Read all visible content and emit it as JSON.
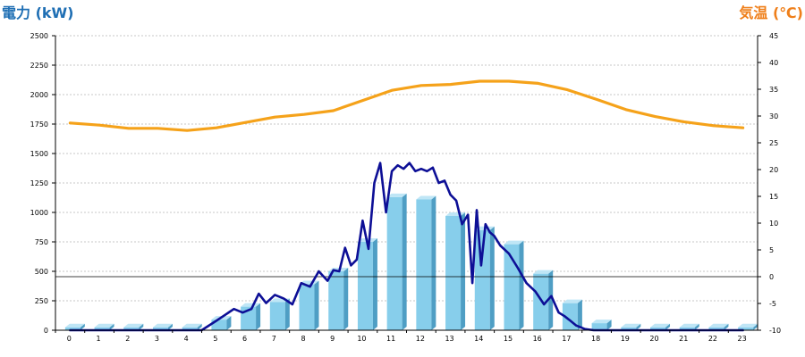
{
  "chart_data": {
    "type": "bar",
    "title_left": "電力 (kW)",
    "title_right": "気温 (℃)",
    "left_axis": {
      "min": 0,
      "max": 2500,
      "ticks": [
        0,
        250,
        500,
        750,
        1000,
        1250,
        1500,
        1750,
        2000,
        2250,
        2500
      ]
    },
    "right_axis": {
      "min": -10,
      "max": 45,
      "ticks": [
        -10,
        -5,
        0,
        5,
        10,
        15,
        20,
        25,
        30,
        35,
        40,
        45
      ]
    },
    "categories": [
      "0",
      "1",
      "2",
      "3",
      "4",
      "5",
      "6",
      "7",
      "8",
      "9",
      "10",
      "11",
      "12",
      "13",
      "14",
      "15",
      "16",
      "17",
      "18",
      "19",
      "20",
      "21",
      "22",
      "23"
    ],
    "grid": true,
    "bars": [
      25,
      25,
      25,
      25,
      25,
      90,
      200,
      240,
      390,
      500,
      750,
      1130,
      1110,
      970,
      850,
      730,
      480,
      230,
      60,
      25,
      25,
      25,
      25,
      25
    ],
    "power_line": {
      "x": [
        0,
        1,
        2,
        3,
        4,
        4.5,
        5,
        5.3,
        5.6,
        5.9,
        6.2,
        6.45,
        6.7,
        7,
        7.3,
        7.6,
        7.9,
        8.2,
        8.5,
        8.8,
        9,
        9.2,
        9.4,
        9.6,
        9.8,
        10,
        10.2,
        10.4,
        10.6,
        10.8,
        11,
        11.2,
        11.4,
        11.6,
        11.8,
        12,
        12.2,
        12.4,
        12.6,
        12.8,
        13,
        13.2,
        13.4,
        13.6,
        13.75,
        13.9,
        14.05,
        14.2,
        14.35,
        14.5,
        14.7,
        15,
        15.3,
        15.6,
        15.9,
        16.2,
        16.45,
        16.7,
        16.9,
        17.1,
        17.3,
        17.6,
        17.9,
        18,
        19,
        20,
        21,
        22,
        23
      ],
      "y": [
        0,
        0,
        0,
        0,
        0,
        0,
        80,
        130,
        180,
        150,
        180,
        310,
        230,
        300,
        270,
        220,
        400,
        370,
        500,
        420,
        510,
        500,
        700,
        550,
        600,
        930,
        690,
        1250,
        1420,
        1000,
        1350,
        1400,
        1370,
        1420,
        1350,
        1370,
        1350,
        1380,
        1250,
        1270,
        1150,
        1100,
        900,
        980,
        400,
        1020,
        550,
        900,
        830,
        800,
        720,
        650,
        530,
        400,
        330,
        220,
        290,
        150,
        120,
        80,
        40,
        10,
        0,
        0,
        0,
        0,
        0,
        0,
        0
      ]
    },
    "temp_line": {
      "x": [
        0,
        1,
        2,
        3,
        4,
        5,
        6,
        7,
        8,
        9,
        10,
        11,
        12,
        13,
        14,
        15,
        16,
        17,
        18,
        19,
        20,
        21,
        22,
        23
      ],
      "y": [
        28.7,
        28.3,
        27.7,
        27.7,
        27.3,
        27.8,
        28.8,
        29.8,
        30.3,
        31.0,
        32.9,
        34.8,
        35.7,
        35.9,
        36.5,
        36.5,
        36.1,
        34.9,
        33.1,
        31.2,
        29.9,
        28.9,
        28.2,
        27.8
      ]
    }
  },
  "colors": {
    "left_title": "#1f6fb4",
    "right_title": "#ef7f1a",
    "bar_front": "#87ceeb",
    "bar_top": "#bfe6f6",
    "bar_side": "#4f9ec4",
    "power_line": "#0d0f96",
    "temp_line": "#f5a21a",
    "grid": "#b5b5b5",
    "zero_line": "#000000"
  }
}
